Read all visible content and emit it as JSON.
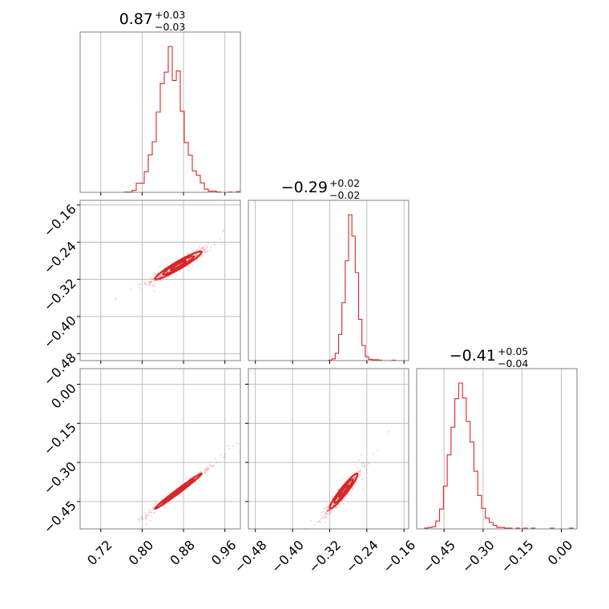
{
  "colors": {
    "accent": "#d62728",
    "grid": "#b0b0b0",
    "frame": "#808080"
  },
  "chart_data": {
    "type": "corner",
    "grid": true,
    "parameters": [
      {
        "title_value": "0.87",
        "title_plus": "+0.03",
        "title_minus": "−0.03",
        "range": [
          0.68,
          0.99
        ],
        "ticks": [
          0.72,
          0.8,
          0.88,
          0.96
        ],
        "tick_labels": [
          "0.72",
          "0.80",
          "0.88",
          "0.96"
        ]
      },
      {
        "title_value": "−0.29",
        "title_plus": "+0.02",
        "title_minus": "−0.02",
        "range": [
          -0.495,
          -0.15
        ],
        "ticks": [
          -0.16,
          -0.24,
          -0.32,
          -0.4,
          -0.48
        ],
        "tick_labels": [
          "−0.16",
          "−0.24",
          "−0.32",
          "−0.40",
          "−0.48"
        ],
        "x_ticks": [
          -0.48,
          -0.4,
          -0.32,
          -0.24,
          -0.16
        ],
        "x_tick_labels": [
          "−0.48",
          "−0.40",
          "−0.32",
          "−0.24",
          "−0.16"
        ]
      },
      {
        "title_value": "−0.41",
        "title_plus": "+0.05",
        "title_minus": "−0.04",
        "range": [
          -0.555,
          0.06
        ],
        "ticks": [
          0.0,
          -0.15,
          -0.3,
          -0.45
        ],
        "tick_labels": [
          "0.00",
          "−0.15",
          "−0.30",
          "−0.45"
        ],
        "x_ticks": [
          -0.45,
          -0.3,
          -0.15,
          0.0
        ],
        "x_tick_labels": [
          "−0.45",
          "−0.30",
          "−0.15",
          "0.00"
        ]
      }
    ],
    "histograms": [
      {
        "param": 0,
        "bin_edges_range": [
          0.68,
          0.99
        ],
        "counts": [
          0,
          0,
          0,
          0,
          0,
          0,
          0,
          0,
          0,
          0,
          0,
          1,
          1,
          5,
          23,
          23,
          52,
          95,
          128,
          203,
          275,
          304,
          369,
          283,
          307,
          205,
          126,
          94,
          54,
          43,
          24,
          8,
          3,
          3,
          1,
          0,
          0,
          1,
          0,
          2
        ]
      },
      {
        "param": 1,
        "bin_edges_range": [
          -0.495,
          -0.15
        ],
        "counts": [
          0,
          0,
          0,
          0,
          0,
          0,
          0,
          0,
          0,
          0,
          0,
          0,
          0,
          0,
          0,
          0,
          0,
          0,
          0,
          0,
          0,
          0,
          0,
          0,
          1,
          4,
          17,
          61,
          135,
          233,
          340,
          290,
          205,
          96,
          35,
          9,
          3,
          2,
          2,
          1,
          0,
          0,
          0,
          1,
          0,
          0,
          0,
          0
        ]
      },
      {
        "param": 2,
        "bin_edges_range": [
          -0.555,
          0.06
        ],
        "counts": [
          0,
          0,
          1,
          2,
          3,
          11,
          28,
          60,
          104,
          143,
          183,
          205,
          184,
          151,
          122,
          81,
          47,
          29,
          15,
          9,
          5,
          2,
          2,
          1,
          1,
          0,
          1,
          0,
          1,
          0,
          1,
          0,
          0,
          0,
          0,
          1,
          0,
          0,
          0,
          0,
          1,
          0
        ]
      }
    ],
    "pairs": [
      {
        "x_param": 0,
        "y_param": 1,
        "center": [
          0.87,
          -0.29
        ],
        "sigma": [
          0.03,
          0.02
        ],
        "corr": 0.95
      },
      {
        "x_param": 0,
        "y_param": 2,
        "center": [
          0.87,
          -0.41
        ],
        "sigma": [
          0.03,
          0.045
        ],
        "corr": 0.99
      },
      {
        "x_param": 1,
        "y_param": 2,
        "center": [
          -0.29,
          -0.41
        ],
        "sigma": [
          0.02,
          0.045
        ],
        "corr": 0.95
      }
    ],
    "contour_levels": [
      0.5,
      1.0,
      1.5
    ]
  }
}
